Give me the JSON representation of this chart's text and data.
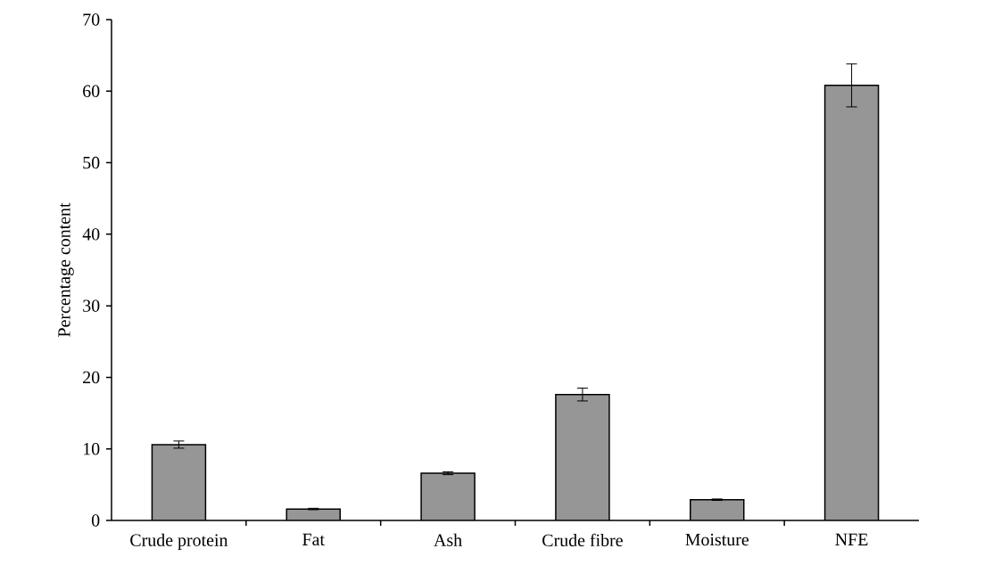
{
  "chart_data": {
    "type": "bar",
    "ylabel": "Percentage content",
    "categories": [
      "Crude protein",
      "Fat",
      "Ash",
      "Crude fibre",
      "Moisture",
      "NFE"
    ],
    "values": [
      10.6,
      1.6,
      6.6,
      17.6,
      2.9,
      60.8
    ],
    "errors": [
      0.5,
      0.1,
      0.2,
      0.9,
      0.1,
      3.0
    ],
    "color": "#969696",
    "ylim": [
      0,
      70
    ],
    "yticks": [
      0,
      10,
      20,
      30,
      40,
      50,
      60,
      70
    ],
    "grid": false
  }
}
